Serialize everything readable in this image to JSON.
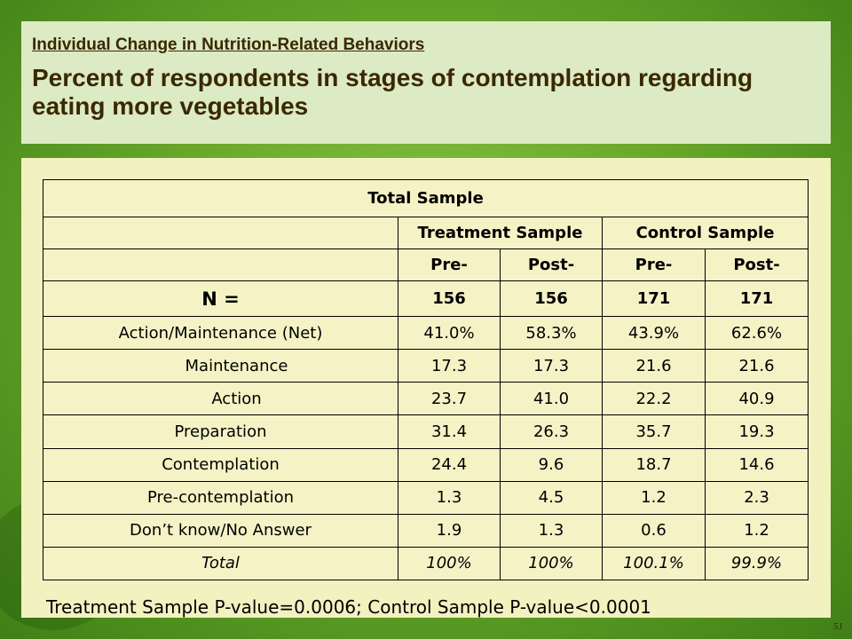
{
  "slide": {
    "subtitle": "Individual Change in Nutrition-Related Behaviors",
    "title": "Percent of respondents in stages of contemplation regarding eating more vegetables",
    "page_number": "51"
  },
  "table": {
    "header_total": "Total Sample",
    "groups": [
      "Treatment Sample",
      "Control Sample"
    ],
    "sub_headers": [
      "Pre-",
      "Post-",
      "Pre-",
      "Post-"
    ],
    "n_label": "N =",
    "n_values": [
      "156",
      "156",
      "171",
      "171"
    ],
    "rows": [
      {
        "label": "Action/Maintenance (Net)",
        "values": [
          "41.0%",
          "58.3%",
          "43.9%",
          "62.6%"
        ]
      },
      {
        "label": "Maintenance",
        "values": [
          "17.3",
          "17.3",
          "21.6",
          "21.6"
        ]
      },
      {
        "label": "Action",
        "values": [
          "23.7",
          "41.0",
          "22.2",
          "40.9"
        ]
      },
      {
        "label": "Preparation",
        "values": [
          "31.4",
          "26.3",
          "35.7",
          "19.3"
        ]
      },
      {
        "label": "Contemplation",
        "values": [
          "24.4",
          "9.6",
          "18.7",
          "14.6"
        ]
      },
      {
        "label": "Pre-contemplation",
        "values": [
          "1.3",
          "4.5",
          "1.2",
          "2.3"
        ]
      },
      {
        "label": "Don’t know/No Answer",
        "values": [
          "1.9",
          "1.3",
          "0.6",
          "1.2"
        ]
      }
    ],
    "total_label": "Total",
    "total_values": [
      "100%",
      "100%",
      "100.1%",
      "99.9%"
    ]
  },
  "footer": {
    "pvalue_text": "Treatment Sample P-value=0.0006; Control Sample P-value<0.0001"
  },
  "colors": {
    "background": "#6aa92b",
    "header_band": "#dcebc4",
    "content_panel": "#f2f1c0",
    "title_text": "#3a2800"
  }
}
